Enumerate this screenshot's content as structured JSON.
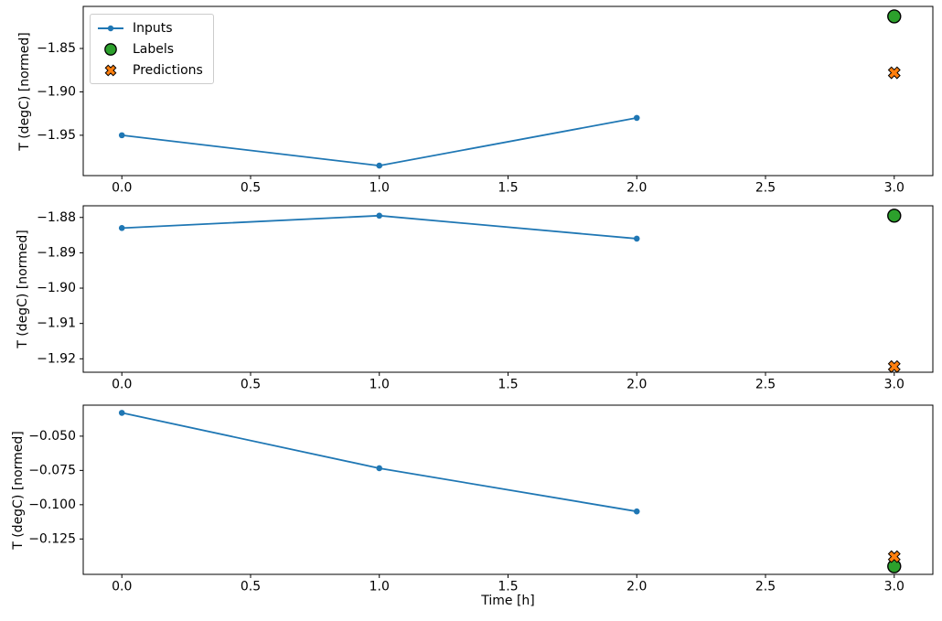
{
  "figure": {
    "xlabel": "Time [h]",
    "ylabel": "T (degC) [normed]",
    "background": "#ffffff",
    "colors": {
      "inputs": "#1f77b4",
      "labels": "#2ca02c",
      "predictions": "#ff7f0e",
      "marker_edge": "#000000",
      "spine": "#000000",
      "text": "#000000",
      "legend_border": "#cccccc"
    },
    "legend": {
      "position": "upper left",
      "entries": [
        {
          "label": "Inputs",
          "marker": "line-dot",
          "color": "#1f77b4"
        },
        {
          "label": "Labels",
          "marker": "circle",
          "color": "#2ca02c"
        },
        {
          "label": "Predictions",
          "marker": "x",
          "color": "#ff7f0e"
        }
      ]
    }
  },
  "chart_data": [
    {
      "type": "line",
      "title": "",
      "xlabel": "",
      "ylabel": "T (degC) [normed]",
      "xlim": [
        -0.15,
        3.15
      ],
      "ylim": [
        -1.9965,
        -1.8015
      ],
      "xticks": [
        0.0,
        0.5,
        1.0,
        1.5,
        2.0,
        2.5,
        3.0
      ],
      "xtick_labels": [
        "0.0",
        "0.5",
        "1.0",
        "1.5",
        "2.0",
        "2.5",
        "3.0"
      ],
      "yticks": [
        -1.85,
        -1.9,
        -1.95
      ],
      "ytick_labels": [
        "−1.85",
        "−1.90",
        "−1.95"
      ],
      "grid": false,
      "series": [
        {
          "name": "Inputs",
          "style": "line_marker",
          "color": "#1f77b4",
          "x": [
            0,
            1,
            2
          ],
          "y": [
            -1.95,
            -1.985,
            -1.93
          ]
        },
        {
          "name": "Labels",
          "style": "scatter_circle",
          "color": "#2ca02c",
          "x": [
            3
          ],
          "y": [
            -1.813
          ]
        },
        {
          "name": "Predictions",
          "style": "scatter_x",
          "color": "#ff7f0e",
          "x": [
            3
          ],
          "y": [
            -1.878
          ]
        }
      ]
    },
    {
      "type": "line",
      "title": "",
      "xlabel": "",
      "ylabel": "T (degC) [normed]",
      "xlim": [
        -0.15,
        3.15
      ],
      "ylim": [
        -1.9238,
        -1.8767
      ],
      "xticks": [
        0.0,
        0.5,
        1.0,
        1.5,
        2.0,
        2.5,
        3.0
      ],
      "xtick_labels": [
        "0.0",
        "0.5",
        "1.0",
        "1.5",
        "2.0",
        "2.5",
        "3.0"
      ],
      "yticks": [
        -1.88,
        -1.89,
        -1.9,
        -1.91,
        -1.92
      ],
      "ytick_labels": [
        "−1.88",
        "−1.89",
        "−1.90",
        "−1.91",
        "−1.92"
      ],
      "grid": false,
      "series": [
        {
          "name": "Inputs",
          "style": "line_marker",
          "color": "#1f77b4",
          "x": [
            0,
            1,
            2
          ],
          "y": [
            -1.883,
            -1.8795,
            -1.886
          ]
        },
        {
          "name": "Labels",
          "style": "scatter_circle",
          "color": "#2ca02c",
          "x": [
            3
          ],
          "y": [
            -1.8795
          ]
        },
        {
          "name": "Predictions",
          "style": "scatter_x",
          "color": "#ff7f0e",
          "x": [
            3
          ],
          "y": [
            -1.9222
          ]
        }
      ]
    },
    {
      "type": "line",
      "title": "",
      "xlabel": "Time [h]",
      "ylabel": "T (degC) [normed]",
      "xlim": [
        -0.15,
        3.15
      ],
      "ylim": [
        -0.1508,
        -0.0274
      ],
      "xticks": [
        0.0,
        0.5,
        1.0,
        1.5,
        2.0,
        2.5,
        3.0
      ],
      "xtick_labels": [
        "0.0",
        "0.5",
        "1.0",
        "1.5",
        "2.0",
        "2.5",
        "3.0"
      ],
      "yticks": [
        -0.05,
        -0.075,
        -0.1,
        -0.125
      ],
      "ytick_labels": [
        "−0.050",
        "−0.075",
        "−0.100",
        "−0.125"
      ],
      "grid": false,
      "series": [
        {
          "name": "Inputs",
          "style": "line_marker",
          "color": "#1f77b4",
          "x": [
            0,
            1,
            2
          ],
          "y": [
            -0.033,
            -0.0734,
            -0.1049
          ]
        },
        {
          "name": "Labels",
          "style": "scatter_circle",
          "color": "#2ca02c",
          "x": [
            3
          ],
          "y": [
            -0.1449
          ]
        },
        {
          "name": "Predictions",
          "style": "scatter_x",
          "color": "#ff7f0e",
          "x": [
            3
          ],
          "y": [
            -0.1379
          ]
        }
      ]
    }
  ]
}
